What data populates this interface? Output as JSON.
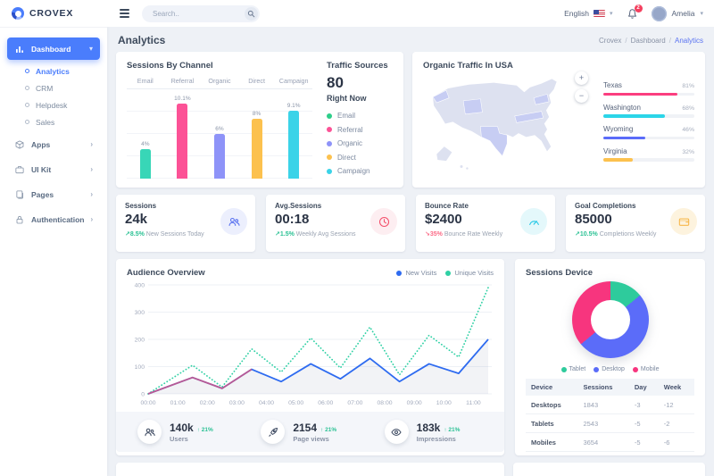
{
  "brand": {
    "name": "CROVEX"
  },
  "navbar": {
    "search_placeholder": "Search..",
    "language": "English",
    "notification_count": "2",
    "user_name": "Amelia"
  },
  "sidebar": {
    "items": [
      {
        "label": "Dashboard",
        "icon": "dashboard-icon",
        "active": true,
        "expanded": true,
        "children": [
          {
            "label": "Analytics",
            "active": true
          },
          {
            "label": "CRM",
            "active": false
          },
          {
            "label": "Helpdesk",
            "active": false
          },
          {
            "label": "Sales",
            "active": false
          }
        ]
      },
      {
        "label": "Apps",
        "icon": "apps-icon",
        "active": false,
        "expanded": false,
        "children": []
      },
      {
        "label": "UI Kit",
        "icon": "uikit-icon",
        "active": false,
        "expanded": false,
        "children": []
      },
      {
        "label": "Pages",
        "icon": "pages-icon",
        "active": false,
        "expanded": false,
        "children": []
      },
      {
        "label": "Authentication",
        "icon": "auth-icon",
        "active": false,
        "expanded": false,
        "children": []
      }
    ]
  },
  "page": {
    "title": "Analytics",
    "breadcrumb": [
      "Crovex",
      "Dashboard",
      "Analytics"
    ]
  },
  "traffic_sources": {
    "title": "Traffic Sources",
    "value": "80",
    "subtitle": "Right Now",
    "legend": [
      {
        "label": "Email",
        "color": "#2dce89"
      },
      {
        "label": "Referral",
        "color": "#fc5296"
      },
      {
        "label": "Organic",
        "color": "#8e93f8"
      },
      {
        "label": "Direct",
        "color": "#fcc14e"
      },
      {
        "label": "Campaign",
        "color": "#3bd3e8"
      }
    ]
  },
  "organic_traffic": {
    "zoom_in": "+",
    "zoom_out": "−"
  },
  "stats": [
    {
      "title": "Sessions",
      "value": "24k",
      "delta": "8.5%",
      "trend": "up",
      "note": "New Sessions Today",
      "icon": "users-icon"
    },
    {
      "title": "Avg.Sessions",
      "value": "00:18",
      "delta": "1.5%",
      "trend": "up",
      "note": "Weekly Avg Sessions",
      "icon": "clock-icon"
    },
    {
      "title": "Bounce Rate",
      "value": "$2400",
      "delta": "35%",
      "trend": "down",
      "note": "Bounce Rate Weekly",
      "icon": "gauge-icon"
    },
    {
      "title": "Goal Completions",
      "value": "85000",
      "delta": "10.5%",
      "trend": "up",
      "note": "Completions Weekly",
      "icon": "wallet-icon"
    }
  ],
  "mini_stats": [
    {
      "value": "140k",
      "delta": "21%",
      "label": "Users",
      "icon": "users-icon"
    },
    {
      "value": "2154",
      "delta": "21%",
      "label": "Page views",
      "icon": "rocket-icon"
    },
    {
      "value": "183k",
      "delta": "21%",
      "label": "Impressions",
      "icon": "eye-icon"
    }
  ],
  "sessions_device": {
    "table": {
      "columns": [
        "Device",
        "Sessions",
        "Day",
        "Week"
      ],
      "rows": [
        [
          "Desktops",
          "1843",
          "-3",
          "-12"
        ],
        [
          "Tablets",
          "2543",
          "-5",
          "-2"
        ],
        [
          "Mobiles",
          "3654",
          "-5",
          "-6"
        ]
      ]
    }
  },
  "chart_data": [
    {
      "type": "bar",
      "title": "Sessions By Channel",
      "categories": [
        "Email",
        "Referral",
        "Organic",
        "Direct",
        "Campaign"
      ],
      "values": [
        4,
        10.1,
        6,
        8,
        9.1
      ],
      "value_labels": [
        "4%",
        "10.1%",
        "6%",
        "8%",
        "9.1%"
      ],
      "colors": [
        "#38d6b7",
        "#fc5296",
        "#8e93f8",
        "#fcc14e",
        "#3bd3e8"
      ],
      "ylim": [
        0,
        12
      ],
      "grid": true,
      "category_position": "top"
    },
    {
      "type": "bar",
      "title": "Organic Traffic In USA",
      "orientation": "horizontal",
      "categories": [
        "Texas",
        "Washington",
        "Wyoming",
        "Virginia"
      ],
      "values": [
        81,
        68,
        46,
        32
      ],
      "value_labels": [
        "81%",
        "68%",
        "46%",
        "32%"
      ],
      "colors": [
        "#fb3e7f",
        "#2bd5e8",
        "#5b6cf9",
        "#fcc14e"
      ],
      "xlim": [
        0,
        100
      ]
    },
    {
      "type": "line",
      "title": "Audience Overview",
      "x": [
        0,
        1.5,
        2.5,
        3.5,
        4.5,
        5.5,
        6.5,
        7.5,
        8.5,
        9.5,
        10.5,
        11.5
      ],
      "x_tick_labels": [
        "00:00",
        "01:00",
        "02:00",
        "03:00",
        "04:00",
        "05:00",
        "06:00",
        "07:00",
        "08:00",
        "09:00",
        "10:00",
        "11:00"
      ],
      "series": [
        {
          "name": "New Visits",
          "color": "#2e6bf0",
          "style": "solid",
          "values": [
            0,
            60,
            20,
            90,
            45,
            110,
            55,
            130,
            45,
            110,
            75,
            200
          ]
        },
        {
          "name": "Unique Visits",
          "color": "#2fd0a4",
          "style": "dotted",
          "values": [
            0,
            105,
            25,
            165,
            80,
            205,
            95,
            245,
            70,
            215,
            135,
            390
          ]
        }
      ],
      "overlay": {
        "color": "#f4516c",
        "x": [
          0,
          1.5,
          2.5,
          3.5
        ],
        "values": [
          0,
          60,
          20,
          90
        ]
      },
      "ylim": [
        0,
        400
      ],
      "y_ticks": [
        0,
        100,
        200,
        300,
        400
      ],
      "legend_position": "top-right",
      "grid": true
    },
    {
      "type": "pie",
      "title": "Sessions Device",
      "donut": true,
      "labels": [
        "Tablet",
        "Desktop",
        "Mobile"
      ],
      "values": [
        14,
        50,
        36
      ],
      "colors": [
        "#2ecb9c",
        "#5b6cf9",
        "#f7357e"
      ]
    }
  ]
}
